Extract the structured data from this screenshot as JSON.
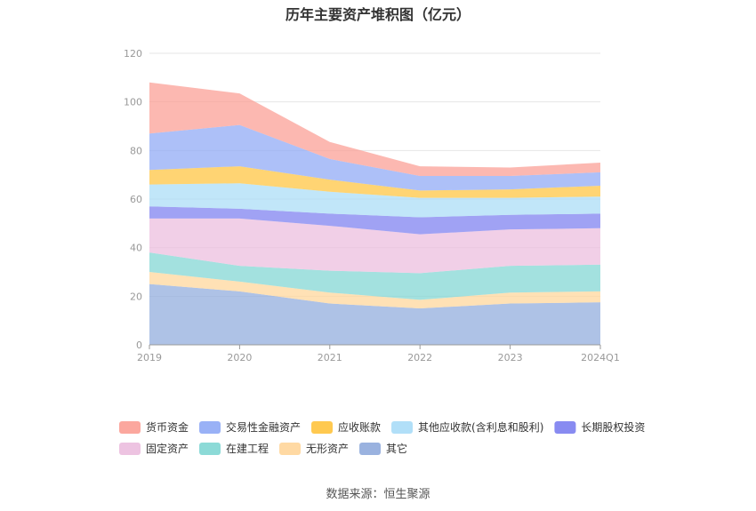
{
  "chart_data": {
    "type": "area",
    "stacked": true,
    "title": "历年主要资产堆积图（亿元）",
    "xlabel": "",
    "ylabel": "",
    "x": [
      "2019",
      "2020",
      "2021",
      "2022",
      "2023",
      "2024Q1"
    ],
    "ylim": [
      0,
      120
    ],
    "yticks": [
      0,
      20,
      40,
      60,
      80,
      100,
      120
    ],
    "grid": true,
    "legend_position": "bottom",
    "series": [
      {
        "name": "其它",
        "color": "#8faadc",
        "values": [
          25,
          22,
          17,
          15,
          17,
          17.5
        ]
      },
      {
        "name": "无形资产",
        "color": "#ffd599",
        "values": [
          5,
          4,
          4.5,
          3.5,
          4.5,
          4.5
        ]
      },
      {
        "name": "在建工程",
        "color": "#7fd6d3",
        "values": [
          8,
          6.5,
          9,
          11,
          11,
          11
        ]
      },
      {
        "name": "固定资产",
        "color": "#ebbcde",
        "values": [
          14,
          19.5,
          18.5,
          16,
          15,
          15
        ]
      },
      {
        "name": "长期股权投资",
        "color": "#7b7ef0",
        "values": [
          5,
          4,
          5,
          7,
          6,
          6
        ]
      },
      {
        "name": "其他应收款(含利息和股利)",
        "color": "#a9dcf7",
        "values": [
          9,
          10.5,
          9,
          8,
          7,
          7
        ]
      },
      {
        "name": "应收账款",
        "color": "#ffc33d",
        "values": [
          6,
          7,
          5,
          3,
          3.5,
          4.5
        ]
      },
      {
        "name": "交易性金融资产",
        "color": "#8ea8f5",
        "values": [
          15,
          17,
          8.5,
          6,
          5.5,
          5.5
        ]
      },
      {
        "name": "货币资金",
        "color": "#fb9d93",
        "values": [
          21,
          13,
          7,
          4,
          3.5,
          4
        ]
      }
    ],
    "legend_order": [
      "货币资金",
      "交易性金融资产",
      "应收账款",
      "其他应收款(含利息和股利)",
      "长期股权投资",
      "固定资产",
      "在建工程",
      "无形资产",
      "其它"
    ],
    "source": "数据来源：恒生聚源"
  }
}
